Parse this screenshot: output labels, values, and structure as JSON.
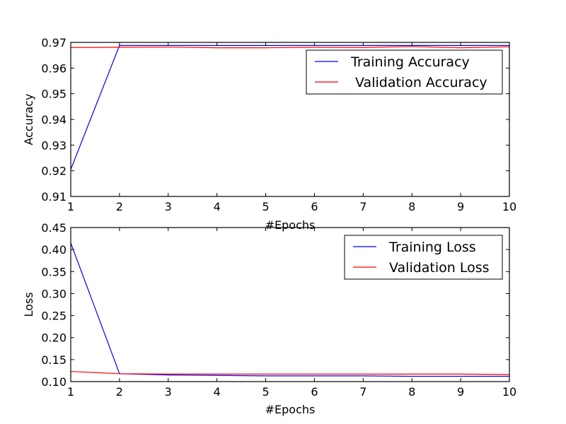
{
  "chart_data": [
    {
      "type": "line",
      "xlabel": "#Epochs",
      "ylabel": "Accuracy",
      "xlim": [
        1,
        10
      ],
      "ylim": [
        0.91,
        0.97
      ],
      "xticks": [
        "1",
        "2",
        "3",
        "4",
        "5",
        "6",
        "7",
        "8",
        "9",
        "10"
      ],
      "yticks": [
        "0.91",
        "0.92",
        "0.93",
        "0.94",
        "0.95",
        "0.96",
        "0.97"
      ],
      "grid": false,
      "legend_position": "top-right",
      "x": [
        1,
        2,
        3,
        4,
        5,
        6,
        7,
        8,
        9,
        10
      ],
      "series": [
        {
          "name": "Training Accuracy",
          "color": "#0000ff",
          "values": [
            0.9205,
            0.9688,
            0.9688,
            0.9688,
            0.9688,
            0.9688,
            0.9688,
            0.9688,
            0.9688,
            0.9688
          ]
        },
        {
          "name": " Validation Accuracy",
          "color": "#ff0000",
          "values": [
            0.968,
            0.9681,
            0.9682,
            0.9679,
            0.9679,
            0.9681,
            0.968,
            0.9684,
            0.9679,
            0.9683
          ]
        }
      ]
    },
    {
      "type": "line",
      "xlabel": "#Epochs",
      "ylabel": "Loss",
      "xlim": [
        1,
        10
      ],
      "ylim": [
        0.1,
        0.45
      ],
      "xticks": [
        "1",
        "2",
        "3",
        "4",
        "5",
        "6",
        "7",
        "8",
        "9",
        "10"
      ],
      "yticks": [
        "0.10",
        "0.15",
        "0.20",
        "0.25",
        "0.30",
        "0.35",
        "0.40",
        "0.45"
      ],
      "grid": false,
      "legend_position": "top-right",
      "x": [
        1,
        2,
        3,
        4,
        5,
        6,
        7,
        8,
        9,
        10
      ],
      "series": [
        {
          "name": "Training Loss",
          "color": "#0000ff",
          "values": [
            0.415,
            0.118,
            0.115,
            0.114,
            0.113,
            0.113,
            0.113,
            0.112,
            0.112,
            0.112
          ]
        },
        {
          "name": "Validation Loss",
          "color": "#ff0000",
          "values": [
            0.123,
            0.118,
            0.117,
            0.117,
            0.117,
            0.117,
            0.117,
            0.117,
            0.117,
            0.116
          ]
        }
      ]
    }
  ]
}
